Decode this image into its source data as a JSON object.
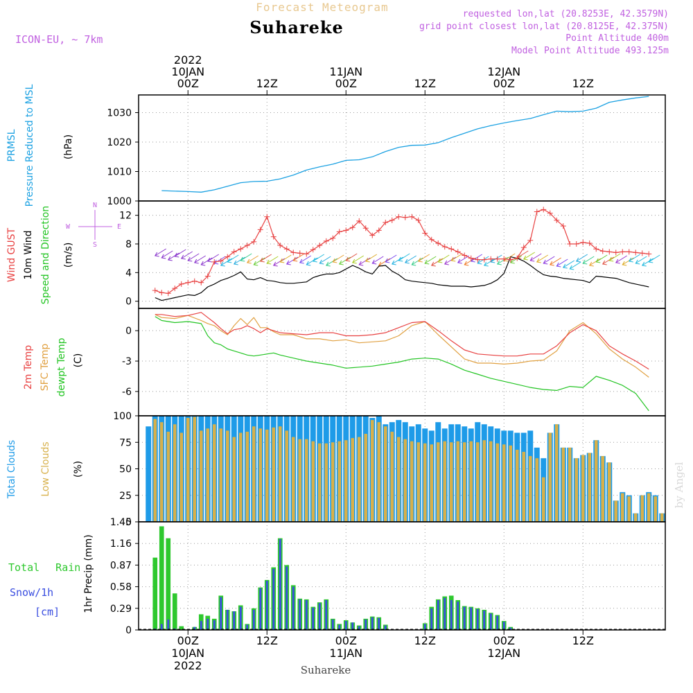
{
  "header": {
    "title": "Forecast Meteogram",
    "location": "Suhareke",
    "model": "ICON-EU, ~ 7km",
    "requested": "requested lon,lat (20.8253E, 42.3579N)",
    "closest": "grid point closest lon,lat (20.8125E, 42.375N)",
    "point_alt": "Point Altitude 400m",
    "model_alt": "Model Point Altitude 493.125m",
    "footer": "Suhareke",
    "watermark": "by Angel"
  },
  "time_axis": {
    "top_labels": [
      {
        "hour": 0,
        "lines": [
          "2022",
          "10JAN",
          "00Z"
        ]
      },
      {
        "hour": 12,
        "lines": [
          "12Z"
        ]
      },
      {
        "hour": 24,
        "lines": [
          "11JAN",
          "00Z"
        ]
      },
      {
        "hour": 36,
        "lines": [
          "12Z"
        ]
      },
      {
        "hour": 48,
        "lines": [
          "12JAN",
          "00Z"
        ]
      },
      {
        "hour": 60,
        "lines": [
          "12Z"
        ]
      }
    ],
    "bottom_labels": [
      {
        "hour": 0,
        "lines": [
          "00Z",
          "10JAN",
          "2022"
        ]
      },
      {
        "hour": 12,
        "lines": [
          "12Z"
        ]
      },
      {
        "hour": 24,
        "lines": [
          "00Z",
          "11JAN"
        ]
      },
      {
        "hour": 36,
        "lines": [
          "12Z"
        ]
      },
      {
        "hour": 48,
        "lines": [
          "00Z",
          "12JAN"
        ]
      },
      {
        "hour": 60,
        "lines": [
          "12Z"
        ]
      }
    ]
  },
  "panels": {
    "pressure": {
      "labels": [
        "PRMSL",
        "Pressure Reduced to MSL"
      ],
      "unit": "(hPa)"
    },
    "wind": {
      "gust_label": "Wind GUST",
      "wind_label": "10m Wind",
      "dir_label": "Speed and Direction",
      "unit": "(m/s)",
      "compass": [
        "N",
        "S",
        "W",
        "E"
      ]
    },
    "temp": {
      "labels": [
        "2m Temp",
        "SFC Temp",
        "dewpt Temp"
      ],
      "unit": "(C)"
    },
    "clouds": {
      "labels": [
        "Total Clouds",
        "Low Clouds"
      ],
      "unit": "(%)"
    },
    "precip": {
      "total_rain": "Total Rain",
      "snow": "Snow/1h",
      "snow_unit": "[cm]",
      "unit": "1hr Precip (mm)"
    }
  },
  "colors": {
    "pressure": "#1ba1e2",
    "gust": "#e84040",
    "wind": "#000000",
    "temp2m": "#e84040",
    "sfc": "#e0a040",
    "dewpt": "#22c422",
    "total_cloud": "#1e9be8",
    "low_cloud": "#d7b04a",
    "rain": "#2ec82e",
    "snow": "#3a4ee0",
    "label_purple": "#c060e0"
  },
  "chart_data": [
    {
      "type": "line",
      "title": "PRMSL Pressure Reduced to MSL",
      "ylabel": "(hPa)",
      "ylim": [
        1000,
        1036
      ],
      "yticks": [
        1000,
        1010,
        1020,
        1030
      ],
      "x_hours": [
        -4,
        0,
        2,
        4,
        6,
        8,
        10,
        12,
        14,
        16,
        18,
        20,
        22,
        24,
        26,
        28,
        30,
        32,
        34,
        36,
        38,
        40,
        42,
        44,
        46,
        48,
        50,
        52,
        54,
        56,
        58,
        60,
        62,
        64,
        66,
        68,
        70
      ],
      "series": [
        {
          "name": "PRMSL",
          "values": [
            1003.5,
            1003.2,
            1003.0,
            1003.8,
            1005.0,
            1006.2,
            1006.6,
            1006.7,
            1007.5,
            1008.8,
            1010.5,
            1011.6,
            1012.5,
            1013.8,
            1014.0,
            1015.0,
            1016.8,
            1018.2,
            1018.9,
            1019.0,
            1019.8,
            1021.5,
            1023.0,
            1024.5,
            1025.6,
            1026.5,
            1027.3,
            1028.0,
            1029.3,
            1030.5,
            1030.3,
            1030.5,
            1031.5,
            1033.5,
            1034.3,
            1035.0,
            1035.5
          ]
        }
      ]
    },
    {
      "type": "line",
      "title": "Wind GUST / 10m Wind Speed and Direction",
      "ylabel": "(m/s)",
      "ylim": [
        -1,
        14
      ],
      "yticks": [
        0,
        4,
        8,
        12
      ],
      "x_hours": [
        -5,
        -4,
        -3,
        -2,
        -1,
        0,
        1,
        2,
        3,
        4,
        5,
        6,
        7,
        8,
        9,
        10,
        11,
        12,
        13,
        14,
        15,
        16,
        17,
        18,
        19,
        20,
        21,
        22,
        23,
        24,
        25,
        26,
        27,
        28,
        29,
        30,
        31,
        32,
        33,
        34,
        35,
        36,
        37,
        38,
        39,
        40,
        41,
        42,
        43,
        44,
        45,
        46,
        47,
        48,
        49,
        50,
        51,
        52,
        53,
        54,
        55,
        56,
        57,
        58,
        59,
        60,
        61,
        62,
        63,
        64,
        65,
        66,
        67,
        68,
        69,
        70
      ],
      "series": [
        {
          "name": "Wind GUST",
          "values": [
            1.5,
            1.2,
            1.1,
            1.8,
            2.4,
            2.6,
            2.8,
            2.6,
            3.5,
            5.5,
            5.6,
            6.2,
            6.9,
            7.3,
            7.8,
            8.3,
            10.0,
            11.8,
            9.0,
            7.8,
            7.3,
            6.8,
            6.7,
            6.6,
            7.2,
            7.8,
            8.4,
            8.8,
            9.7,
            9.9,
            10.3,
            11.2,
            10.2,
            9.2,
            9.9,
            11.0,
            11.3,
            11.8,
            11.7,
            11.8,
            11.3,
            9.5,
            8.6,
            8.1,
            7.6,
            7.3,
            6.9,
            6.4,
            6.0,
            5.8,
            5.8,
            5.9,
            5.9,
            5.9,
            5.8,
            6.0,
            7.5,
            8.5,
            12.5,
            12.8,
            12.3,
            11.3,
            10.5,
            8.0,
            8.0,
            8.2,
            8.1,
            7.3,
            7.0,
            6.9,
            6.8,
            6.9,
            6.9,
            6.8,
            6.7,
            6.6
          ]
        },
        {
          "name": "10m Wind",
          "values": [
            0.5,
            0.1,
            0.3,
            0.5,
            0.7,
            0.9,
            0.8,
            1.2,
            2.0,
            2.4,
            2.9,
            3.2,
            3.6,
            4.1,
            3.1,
            3.0,
            3.3,
            2.9,
            2.8,
            2.6,
            2.5,
            2.5,
            2.6,
            2.7,
            3.3,
            3.6,
            3.8,
            3.8,
            4.0,
            4.5,
            5.0,
            4.6,
            4.1,
            3.8,
            4.9,
            5.0,
            4.2,
            3.7,
            3.0,
            2.8,
            2.7,
            2.6,
            2.5,
            2.3,
            2.2,
            2.1,
            2.1,
            2.1,
            2.0,
            2.1,
            2.2,
            2.5,
            3.0,
            3.9,
            6.2,
            6.0,
            5.6,
            5.0,
            4.3,
            3.7,
            3.5,
            3.4,
            3.2,
            3.1,
            3.0,
            2.9,
            2.6,
            3.5,
            3.4,
            3.3,
            3.2,
            2.9,
            2.6,
            2.4,
            2.2,
            2.0
          ]
        }
      ]
    },
    {
      "type": "line",
      "title": "2m Temp / SFC Temp / dewpt Temp",
      "ylabel": "(C)",
      "ylim": [
        -8.4,
        2.2
      ],
      "yticks": [
        0,
        -3,
        -6
      ],
      "x_hours": [
        -5,
        -4,
        -2,
        0,
        2,
        3,
        4,
        5,
        6,
        7,
        8,
        9,
        10,
        11,
        12,
        13,
        14,
        16,
        18,
        20,
        22,
        24,
        26,
        28,
        30,
        32,
        34,
        36,
        38,
        40,
        42,
        44,
        46,
        48,
        50,
        52,
        54,
        56,
        58,
        60,
        62,
        64,
        66,
        68,
        70
      ],
      "series": [
        {
          "name": "2m Temp",
          "values": [
            1.6,
            1.6,
            1.4,
            1.5,
            1.8,
            1.3,
            0.8,
            0.2,
            -0.3,
            0.1,
            0.2,
            0.5,
            0.2,
            -0.2,
            0.2,
            0.0,
            -0.2,
            -0.3,
            -0.4,
            -0.2,
            -0.2,
            -0.5,
            -0.5,
            -0.4,
            -0.2,
            0.3,
            0.8,
            0.9,
            0.0,
            -1.0,
            -1.9,
            -2.3,
            -2.4,
            -2.5,
            -2.5,
            -2.3,
            -2.3,
            -1.5,
            -0.2,
            0.6,
            0.0,
            -1.5,
            -2.3,
            -3.0,
            -3.8
          ]
        },
        {
          "name": "SFC Temp",
          "values": [
            1.6,
            1.3,
            1.2,
            1.5,
            1.0,
            0.7,
            0.5,
            0.0,
            -0.4,
            0.5,
            1.2,
            0.6,
            1.3,
            0.3,
            0.3,
            -0.1,
            -0.4,
            -0.4,
            -0.8,
            -0.8,
            -1.0,
            -0.9,
            -1.2,
            -1.1,
            -1.0,
            -0.5,
            0.5,
            0.9,
            -0.4,
            -1.6,
            -2.8,
            -3.2,
            -3.2,
            -3.3,
            -3.2,
            -3.0,
            -2.9,
            -2.0,
            0.0,
            0.8,
            -0.3,
            -1.8,
            -2.8,
            -3.6,
            -4.6
          ]
        },
        {
          "name": "dewpt Temp",
          "values": [
            1.4,
            1.0,
            0.8,
            0.9,
            0.7,
            -0.5,
            -1.2,
            -1.4,
            -1.8,
            -2.0,
            -2.2,
            -2.4,
            -2.5,
            -2.4,
            -2.3,
            -2.2,
            -2.4,
            -2.7,
            -3.0,
            -3.2,
            -3.4,
            -3.7,
            -3.6,
            -3.5,
            -3.3,
            -3.1,
            -2.8,
            -2.7,
            -2.8,
            -3.3,
            -3.9,
            -4.3,
            -4.7,
            -5.0,
            -5.3,
            -5.6,
            -5.8,
            -5.9,
            -5.5,
            -5.6,
            -4.5,
            -4.9,
            -5.4,
            -6.2,
            -7.9
          ]
        }
      ]
    },
    {
      "type": "bar",
      "title": "Total Clouds / Low Clouds",
      "ylabel": "(%)",
      "ylim": [
        0,
        100
      ],
      "yticks": [
        0,
        25,
        50,
        75,
        100
      ],
      "x_hours": [
        -6,
        -5,
        -4,
        -3,
        -2,
        -1,
        0,
        1,
        2,
        3,
        4,
        5,
        6,
        7,
        8,
        9,
        10,
        11,
        12,
        13,
        14,
        15,
        16,
        17,
        18,
        19,
        20,
        21,
        22,
        23,
        24,
        25,
        26,
        27,
        28,
        29,
        30,
        31,
        32,
        33,
        34,
        35,
        36,
        37,
        38,
        39,
        40,
        41,
        42,
        43,
        44,
        45,
        46,
        47,
        48,
        49,
        50,
        51,
        52,
        53,
        54,
        55,
        56,
        57,
        58,
        59,
        60,
        61,
        62,
        63,
        64,
        65,
        66,
        67,
        68,
        69,
        70,
        71,
        72
      ],
      "series": [
        {
          "name": "Total Clouds",
          "values": [
            90,
            100,
            100,
            100,
            100,
            100,
            100,
            100,
            100,
            100,
            100,
            100,
            100,
            100,
            100,
            100,
            100,
            100,
            100,
            100,
            100,
            100,
            100,
            100,
            100,
            100,
            100,
            100,
            100,
            100,
            100,
            100,
            100,
            100,
            98,
            100,
            92,
            94,
            96,
            94,
            90,
            92,
            88,
            86,
            94,
            88,
            92,
            92,
            90,
            88,
            94,
            92,
            90,
            88,
            86,
            86,
            84,
            84,
            86,
            70,
            60,
            84,
            92,
            70,
            70,
            60,
            63,
            65,
            77,
            62,
            56,
            20,
            28,
            25,
            8,
            25,
            28,
            25,
            8
          ]
        },
        {
          "name": "Low Clouds",
          "values": [
            0,
            97,
            94,
            85,
            92,
            84,
            98,
            99,
            86,
            88,
            92,
            88,
            86,
            80,
            84,
            85,
            90,
            88,
            87,
            89,
            90,
            86,
            80,
            78,
            78,
            76,
            74,
            74,
            75,
            76,
            77,
            79,
            80,
            83,
            96,
            94,
            90,
            85,
            80,
            78,
            76,
            75,
            74,
            73,
            75,
            76,
            75,
            76,
            75,
            76,
            75,
            77,
            76,
            74,
            73,
            72,
            68,
            66,
            62,
            60,
            42,
            84,
            92,
            70,
            70,
            60,
            63,
            65,
            77,
            62,
            56,
            20,
            27,
            24,
            8,
            25,
            27,
            24,
            8
          ]
        }
      ]
    },
    {
      "type": "bar",
      "title": "1hr Precip",
      "ylabel": "1hr Precip (mm)",
      "ylim": [
        0,
        1.45
      ],
      "yticks": [
        0,
        0.29,
        0.58,
        0.87,
        1.16,
        1.45
      ],
      "x_hours": [
        -5,
        -4,
        -3,
        -2,
        -1,
        0,
        1,
        2,
        3,
        4,
        5,
        6,
        7,
        8,
        9,
        10,
        11,
        12,
        13,
        14,
        15,
        16,
        17,
        18,
        19,
        20,
        21,
        22,
        23,
        24,
        25,
        26,
        27,
        28,
        29,
        30,
        31,
        32,
        33,
        34,
        35,
        36,
        37,
        38,
        39,
        40,
        41,
        42,
        43,
        44,
        45,
        46,
        47,
        48,
        49,
        50,
        51,
        52
      ],
      "series": [
        {
          "name": "Total Rain",
          "values": [
            0.97,
            1.39,
            1.23,
            0.49,
            0.05,
            0.0,
            0.04,
            0.21,
            0.19,
            0.15,
            0.46,
            0.27,
            0.25,
            0.33,
            0.08,
            0.29,
            0.57,
            0.67,
            0.84,
            1.23,
            0.87,
            0.6,
            0.42,
            0.41,
            0.31,
            0.37,
            0.41,
            0.15,
            0.08,
            0.13,
            0.1,
            0.06,
            0.15,
            0.18,
            0.17,
            0.07,
            0.0,
            0.0,
            0.0,
            0.0,
            0.0,
            0.09,
            0.31,
            0.41,
            0.45,
            0.46,
            0.4,
            0.32,
            0.31,
            0.29,
            0.27,
            0.23,
            0.2,
            0.12,
            0.04,
            0.0,
            0.0,
            0.0
          ]
        },
        {
          "name": "Snow/1h",
          "values": [
            0.02,
            0.08,
            0.14,
            0.02,
            0.0,
            0.0,
            0.04,
            0.12,
            0.15,
            0.13,
            0.44,
            0.27,
            0.25,
            0.31,
            0.07,
            0.27,
            0.56,
            0.66,
            0.82,
            1.22,
            0.85,
            0.58,
            0.41,
            0.4,
            0.3,
            0.36,
            0.4,
            0.14,
            0.07,
            0.12,
            0.1,
            0.05,
            0.14,
            0.17,
            0.16,
            0.06,
            0.0,
            0.0,
            0.0,
            0.0,
            0.0,
            0.08,
            0.29,
            0.4,
            0.43,
            0.4,
            0.38,
            0.31,
            0.3,
            0.28,
            0.26,
            0.22,
            0.19,
            0.11,
            0.03,
            0.0,
            0.0,
            0.0
          ]
        }
      ]
    }
  ]
}
